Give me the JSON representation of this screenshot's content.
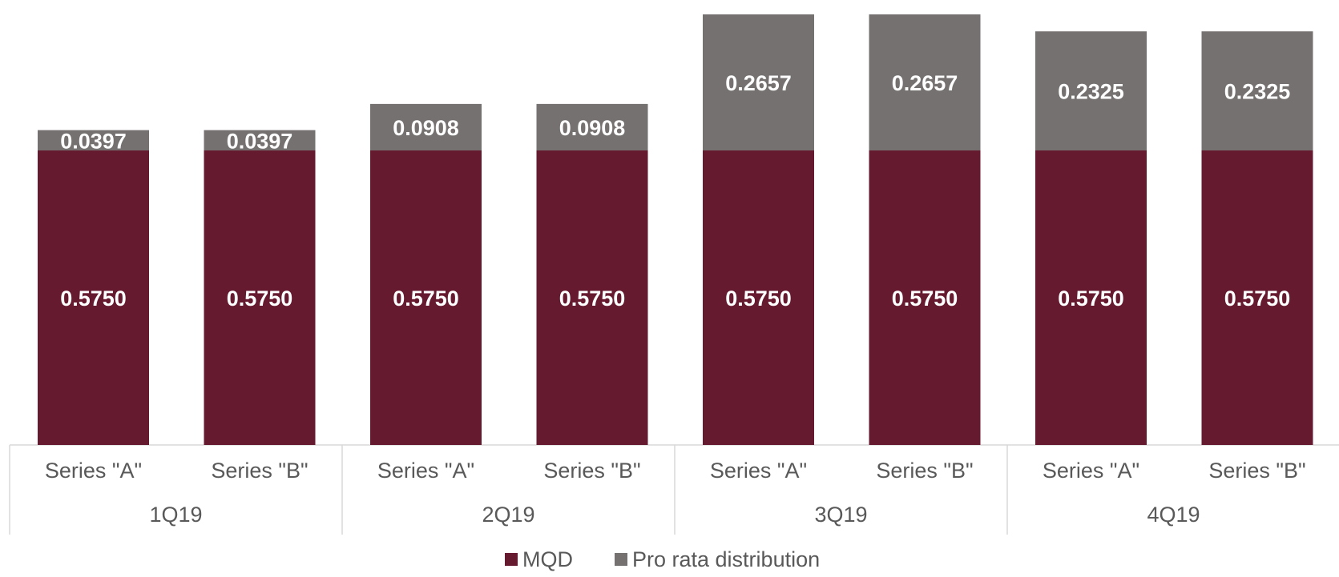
{
  "chart_data": {
    "type": "bar",
    "stacked": true,
    "groups": [
      "1Q19",
      "2Q19",
      "3Q19",
      "4Q19"
    ],
    "categories": [
      "Series \"A\"",
      "Series \"B\"",
      "Series \"A\"",
      "Series \"B\"",
      "Series \"A\"",
      "Series \"B\"",
      "Series \"A\"",
      "Series \"B\""
    ],
    "series": [
      {
        "name": "MQD",
        "color": "#661a30",
        "values": [
          0.575,
          0.575,
          0.575,
          0.575,
          0.575,
          0.575,
          0.575,
          0.575
        ],
        "labels": [
          "0.5750",
          "0.5750",
          "0.5750",
          "0.5750",
          "0.5750",
          "0.5750",
          "0.5750",
          "0.5750"
        ]
      },
      {
        "name": "Pro rata distribution",
        "color": "#767171",
        "values": [
          0.0397,
          0.0397,
          0.0908,
          0.0908,
          0.2657,
          0.2657,
          0.2325,
          0.2325
        ],
        "labels": [
          "0.0397",
          "0.0397",
          "0.0908",
          "0.0908",
          "0.2657",
          "0.2657",
          "0.2325",
          "0.2325"
        ]
      }
    ],
    "title": "",
    "xlabel": "",
    "ylabel": "",
    "ylim": [
      0,
      0.85
    ],
    "grid": false,
    "legend_position": "bottom-center"
  }
}
